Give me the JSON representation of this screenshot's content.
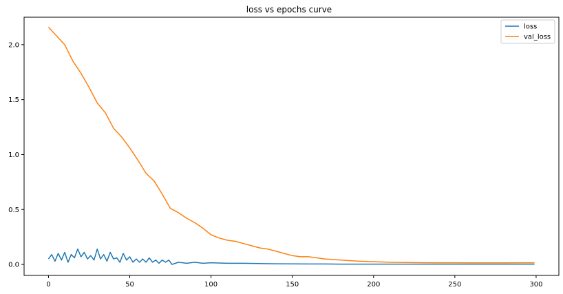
{
  "chart_data": {
    "type": "line",
    "title": "loss vs epochs curve",
    "xlabel": "",
    "ylabel": "",
    "xlim": [
      -15,
      314
    ],
    "ylim": [
      -0.1,
      2.25
    ],
    "xticks": [
      0,
      50,
      100,
      150,
      200,
      250,
      300
    ],
    "yticks": [
      0.0,
      0.5,
      1.0,
      1.5,
      2.0
    ],
    "xtick_labels": [
      "0",
      "50",
      "100",
      "150",
      "200",
      "250",
      "300"
    ],
    "ytick_labels": [
      "0.0",
      "0.5",
      "1.0",
      "1.5",
      "2.0"
    ],
    "grid": false,
    "legend_position": "top-right",
    "series": [
      {
        "name": "loss",
        "color": "#1f77b4",
        "x": [
          0,
          2,
          4,
          6,
          8,
          10,
          12,
          14,
          16,
          18,
          20,
          22,
          24,
          26,
          28,
          30,
          32,
          34,
          36,
          38,
          40,
          42,
          44,
          46,
          48,
          50,
          52,
          54,
          56,
          58,
          60,
          62,
          64,
          66,
          68,
          70,
          72,
          74,
          76,
          80,
          85,
          90,
          95,
          100,
          110,
          120,
          130,
          140,
          150,
          160,
          170,
          180,
          190,
          200,
          220,
          240,
          260,
          280,
          299
        ],
        "y": [
          0.05,
          0.09,
          0.03,
          0.1,
          0.04,
          0.11,
          0.02,
          0.09,
          0.06,
          0.14,
          0.07,
          0.11,
          0.05,
          0.08,
          0.04,
          0.14,
          0.05,
          0.09,
          0.03,
          0.11,
          0.05,
          0.06,
          0.02,
          0.1,
          0.04,
          0.07,
          0.02,
          0.05,
          0.02,
          0.05,
          0.02,
          0.06,
          0.02,
          0.04,
          0.01,
          0.04,
          0.02,
          0.04,
          0.0,
          0.02,
          0.01,
          0.02,
          0.01,
          0.015,
          0.01,
          0.01,
          0.008,
          0.006,
          0.005,
          0.004,
          0.004,
          0.003,
          0.003,
          0.003,
          0.003,
          0.003,
          0.003,
          0.003,
          0.003
        ]
      },
      {
        "name": "val_loss",
        "color": "#ff7f0e",
        "x": [
          0,
          5,
          10,
          15,
          20,
          25,
          30,
          35,
          40,
          45,
          50,
          55,
          60,
          65,
          70,
          75,
          80,
          85,
          90,
          95,
          100,
          105,
          110,
          115,
          120,
          125,
          130,
          135,
          140,
          145,
          150,
          155,
          160,
          165,
          170,
          175,
          180,
          185,
          190,
          200,
          210,
          220,
          230,
          240,
          250,
          260,
          270,
          280,
          290,
          299
        ],
        "y": [
          2.16,
          2.08,
          2.0,
          1.85,
          1.74,
          1.61,
          1.47,
          1.38,
          1.24,
          1.16,
          1.06,
          0.95,
          0.83,
          0.76,
          0.64,
          0.51,
          0.47,
          0.42,
          0.38,
          0.33,
          0.27,
          0.24,
          0.22,
          0.21,
          0.19,
          0.17,
          0.15,
          0.14,
          0.12,
          0.1,
          0.08,
          0.07,
          0.07,
          0.06,
          0.05,
          0.045,
          0.04,
          0.035,
          0.03,
          0.025,
          0.02,
          0.018,
          0.016,
          0.015,
          0.015,
          0.014,
          0.014,
          0.014,
          0.015,
          0.015
        ]
      }
    ]
  }
}
